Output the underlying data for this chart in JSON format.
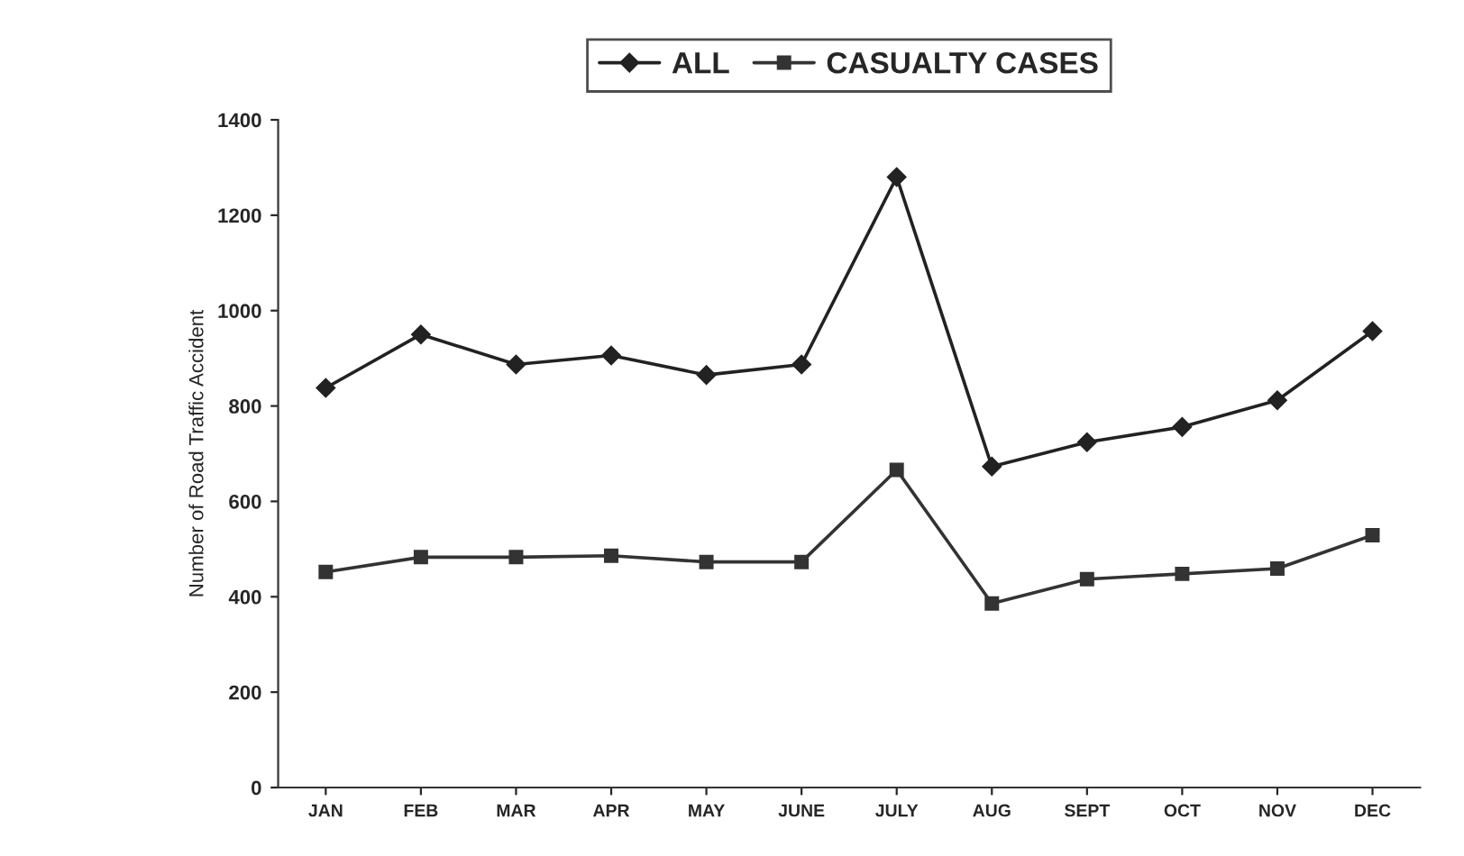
{
  "chart_data": {
    "type": "line",
    "ylabel": "Number of Road Traffic Accident",
    "categories": [
      "JAN",
      "FEB",
      "MAR",
      "APR",
      "MAY",
      "JUNE",
      "JULY",
      "AUG",
      "SEPT",
      "OCT",
      "NOV",
      "DEC"
    ],
    "series": [
      {
        "name": "ALL",
        "color": "#222222",
        "marker": "diamond",
        "values": [
          838,
          950,
          887,
          906,
          865,
          887,
          1280,
          673,
          724,
          756,
          812,
          957
        ]
      },
      {
        "name": "CASUALTY CASES",
        "color": "#333333",
        "marker": "square",
        "values": [
          452,
          483,
          483,
          486,
          473,
          473,
          666,
          386,
          437,
          448,
          459,
          529
        ]
      }
    ],
    "ylim": [
      0,
      1400
    ],
    "yticks": [
      0,
      200,
      400,
      600,
      800,
      1000,
      1200,
      1400
    ],
    "grid": false,
    "legend": "top",
    "line_style": "solid"
  }
}
